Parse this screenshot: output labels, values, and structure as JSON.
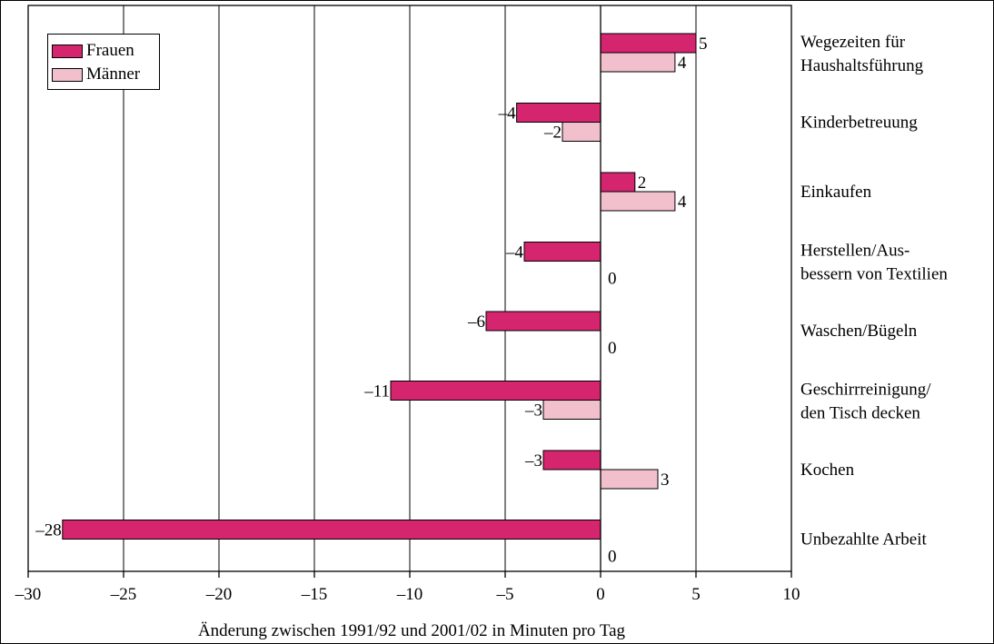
{
  "colors": {
    "frauen": "#d4256e",
    "maenner": "#f2bfcc",
    "axis": "#000000",
    "grid": "#000000"
  },
  "chart_data": {
    "type": "bar",
    "orientation": "horizontal",
    "categories": [
      [
        "Wegezeiten für",
        "Haushaltsführung"
      ],
      [
        "Kinderbetreuung"
      ],
      [
        "Einkaufen"
      ],
      [
        "Herstellen/Aus-",
        "bessern von Textilien"
      ],
      [
        "Waschen/Bügeln"
      ],
      [
        "Geschirrreinigung/",
        "den Tisch decken"
      ],
      [
        "Kochen"
      ],
      [
        "Unbezahlte Arbeit"
      ]
    ],
    "series": [
      {
        "name": "Frauen",
        "values": [
          5,
          -4.4,
          1.8,
          -4,
          -6,
          -11,
          -3,
          -28.2
        ],
        "labels": [
          "5",
          "–4",
          "2",
          "–4",
          "–6",
          "–11",
          "–3",
          "–28"
        ]
      },
      {
        "name": "Männer",
        "values": [
          3.9,
          -2,
          3.9,
          0,
          0,
          -3,
          3,
          0
        ],
        "labels": [
          "4",
          "–2",
          "4",
          "0",
          "0",
          "–3",
          "3",
          "0"
        ]
      }
    ],
    "xlabel": "Änderung zwischen 1991/92 und 2001/02 in Minuten pro Tag",
    "xlim": [
      -30,
      10
    ],
    "xticks": [
      -30,
      -25,
      -20,
      -15,
      -10,
      -5,
      0,
      5,
      10
    ],
    "xtick_labels": [
      "–30",
      "–25",
      "–20",
      "–15",
      "–10",
      "–5",
      "0",
      "5",
      "10"
    ],
    "grid": true,
    "legend_position": "top-left"
  }
}
